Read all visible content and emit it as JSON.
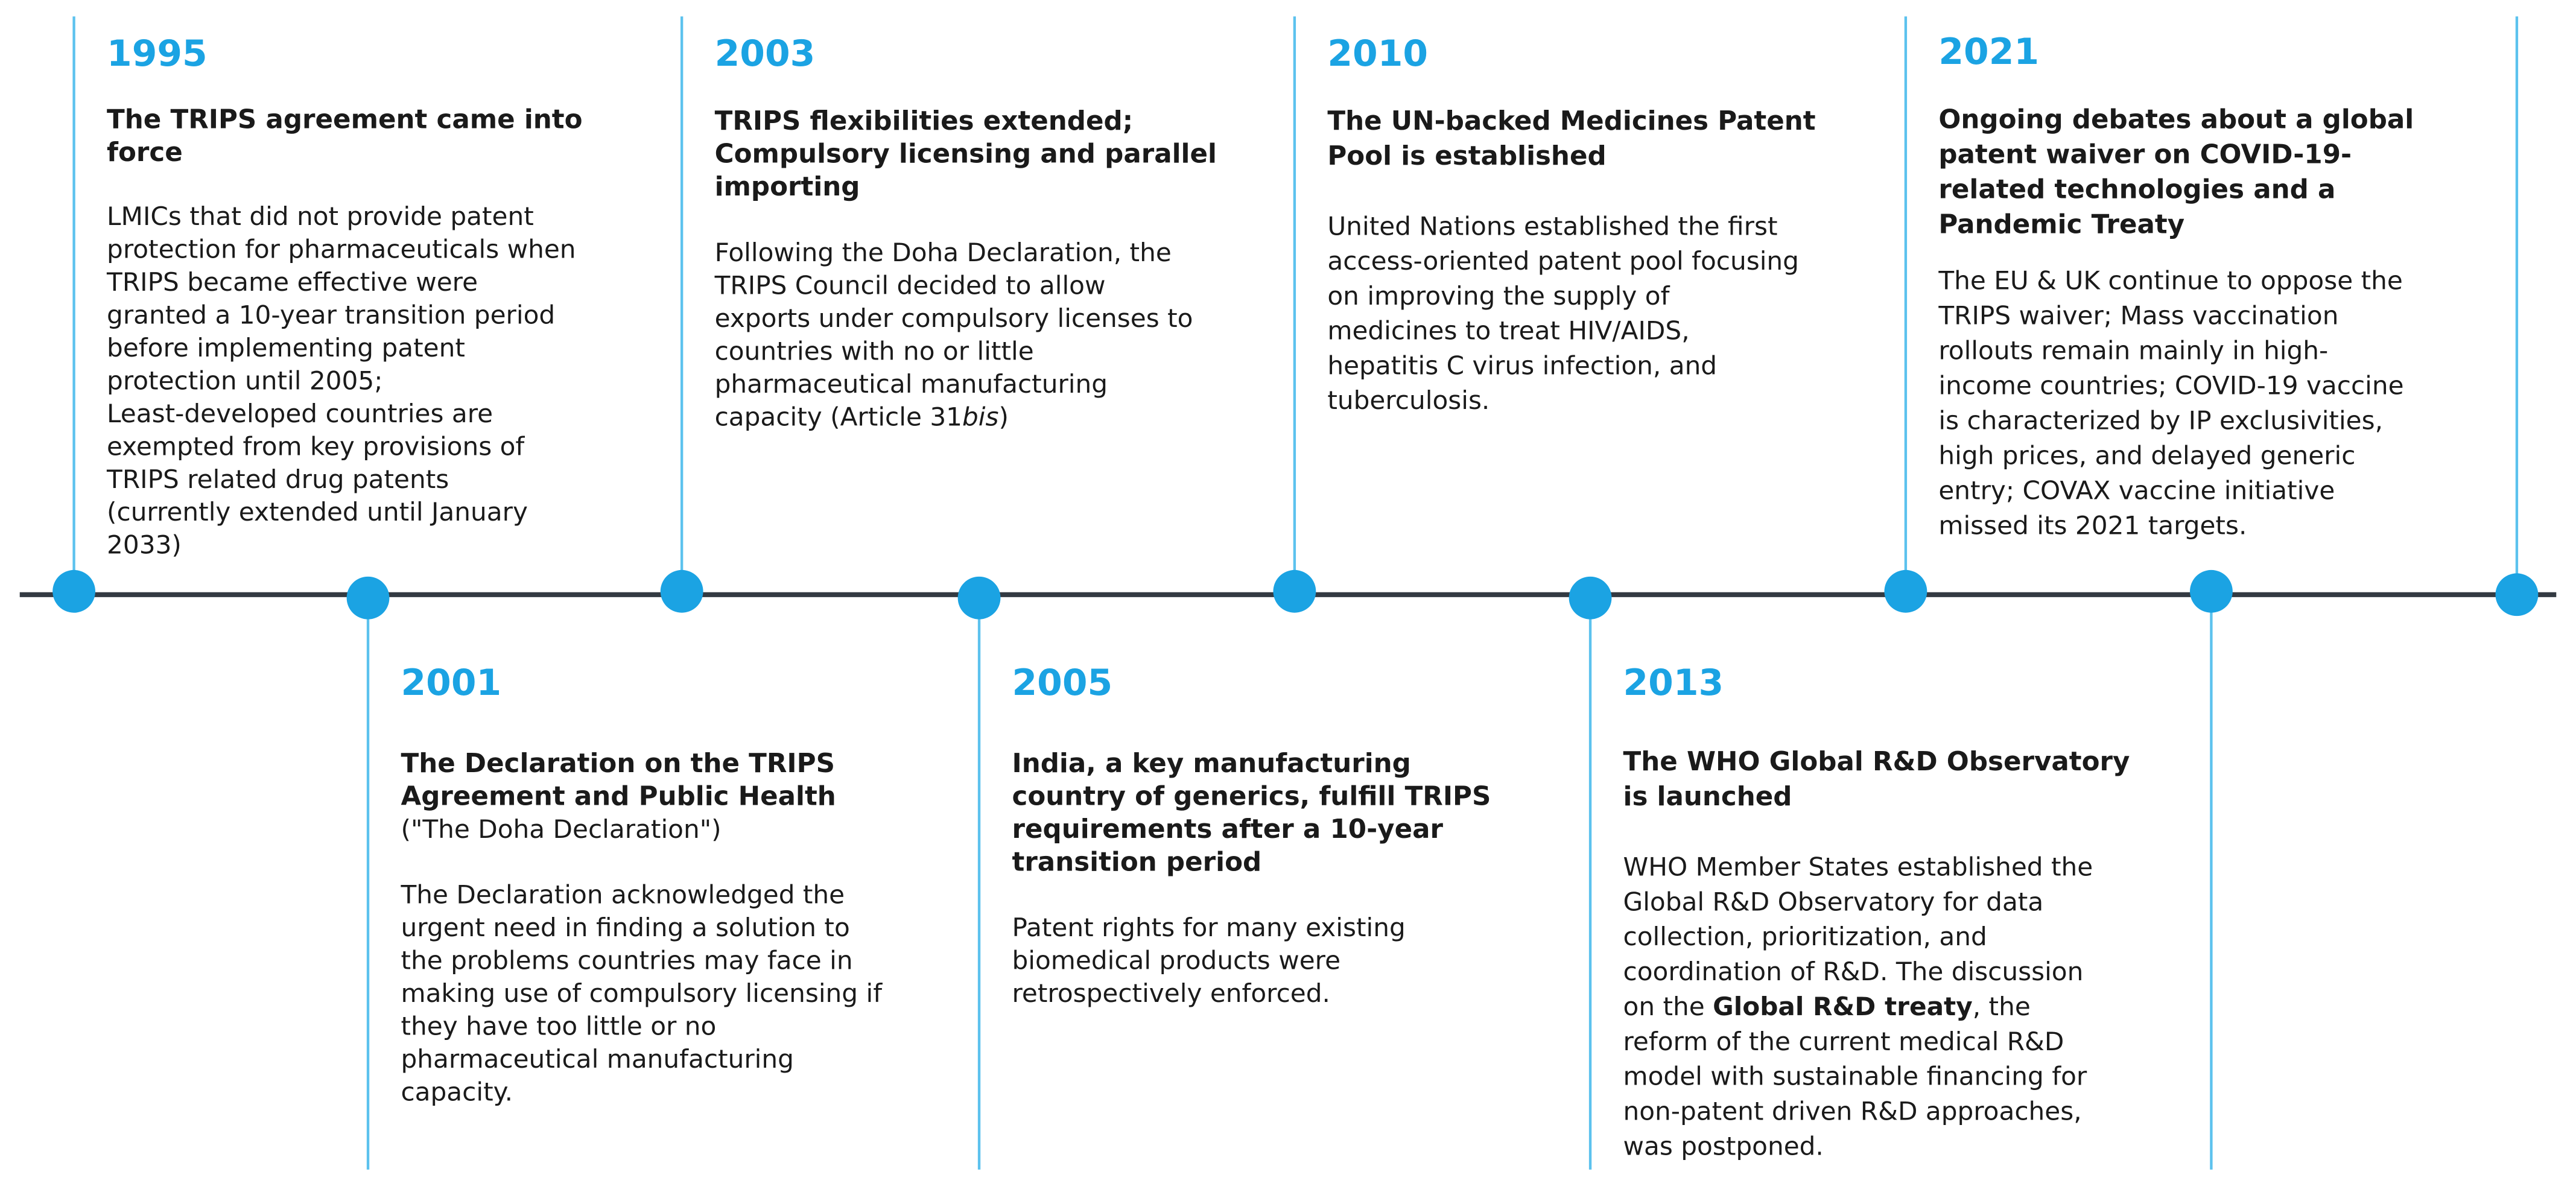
{
  "events": [
    {
      "year": "1995",
      "title": [
        "The TRIPS agreement came into",
        "force"
      ],
      "body": [
        "LMICs that did not provide patent",
        "protection for pharmaceuticals  when",
        "TRIPS became effective were",
        "granted a 10-year transition period",
        "before implementing  patent",
        "protection until 2005;",
        "Least-developed countries are",
        "exempted from key provisions of",
        "TRIPS related drug patents",
        "(currently extended until January",
        "2033)"
      ]
    },
    {
      "year": "2001",
      "title": [
        "The Declaration  on the TRIPS",
        "Agreement and Public Health"
      ],
      "subtitle": [
        "(\"The Doha Declaration\")"
      ],
      "body": [
        "The Declaration acknowledged the",
        "urgent need in finding a solution to",
        "the problems countries may face in",
        "making use of compulsory licensing if",
        "they have too little  or no",
        "pharmaceutical  manufacturing",
        "capacity."
      ]
    },
    {
      "year": "2003",
      "title": [
        "TRIPS flexibilities  extended;",
        "Compulsory licensing  and parallel",
        "importing"
      ],
      "body": [
        "Following the Doha Declaration, the",
        "TRIPS Council decided to allow",
        "exports under compulsory licenses to",
        "countries with no or little",
        "pharmaceutical  manufacturing",
        [
          {
            "text": "capacity (Article 31"
          },
          {
            "text": "bis",
            "style": "italic"
          },
          {
            "text": ")"
          }
        ]
      ]
    },
    {
      "year": "2005",
      "title": [
        "India, a key manufacturing",
        "country of generics, fulfill TRIPS",
        "requirements  after a 10-year",
        "transition period"
      ],
      "body": [
        "Patent rights for many existing",
        "biomedical  products were",
        "retrospectively enforced."
      ]
    },
    {
      "year": "2010",
      "title": [
        "The UN-backed Medicines Patent",
        "Pool is established"
      ],
      "body": [
        "United Nations established the first",
        "access-oriented patent pool focusing",
        "on improving  the supply of",
        "medicines to treat HIV/AIDS,",
        "hepatitis C virus infection, and",
        "tuberculosis."
      ]
    },
    {
      "year": "2013",
      "title": [
        "The WHO Global R&D Observatory",
        "is launched"
      ],
      "body": [
        "WHO Member  States established the",
        "Global R&D Observatory for data",
        "collection, prioritization, and",
        "coordination of R&D. The discussion",
        [
          {
            "text": "on the "
          },
          {
            "text": "Global R&D treaty",
            "style": "bold"
          },
          {
            "text": ", the"
          }
        ],
        "reform of the current medical  R&D",
        "model with sustainable financing for",
        "non-patent driven R&D approaches,",
        "was postponed."
      ]
    },
    {
      "year": "2021",
      "title": [
        "Ongoing debates about a global",
        "patent waiver on COVID-19-",
        "related technologies and a",
        "Pandemic Treaty"
      ],
      "body": [
        "The EU & UK continue to oppose the",
        "TRIPS waiver;  Mass vaccination",
        "rollouts remain mainly  in high-",
        "income countries; COVID-19 vaccine",
        "is characterized by IP exclusivities,",
        "high prices, and delayed generic",
        "entry; COVAX vaccine initiative",
        "missed its 2021 targets."
      ]
    }
  ]
}
